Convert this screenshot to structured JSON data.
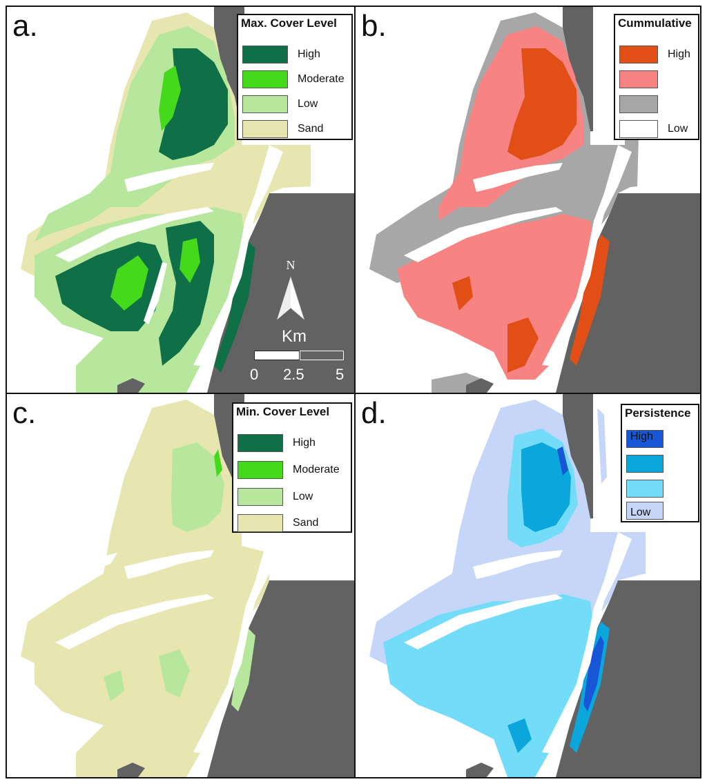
{
  "colors": {
    "land": "#626262",
    "water": "#ffffff",
    "sand": "#e7e6b1",
    "low_green": "#b7e69d",
    "moderate_green": "#45d91c",
    "high_green": "#0f7048",
    "cum_high": "#e14e16",
    "cum_mid": "#f88383",
    "cum_lowmid": "#a7a7a7",
    "cum_low": "#ffffff",
    "per_high": "#1757d6",
    "per_mid": "#0ba6dc",
    "per_lowmid": "#73dcf8",
    "per_low": "#c6d6f8"
  },
  "panels": [
    {
      "id": "a",
      "label": "a.",
      "legend": {
        "title": "Max. Cover Level",
        "items": [
          {
            "label": "High",
            "color": "#0f7048"
          },
          {
            "label": "Moderate",
            "color": "#45d91c"
          },
          {
            "label": "Low",
            "color": "#b7e69d"
          },
          {
            "label": "Sand",
            "color": "#e7e6b1"
          }
        ]
      }
    },
    {
      "id": "b",
      "label": "b.",
      "legend": {
        "title": "Cummulative",
        "items": [
          {
            "label": "High",
            "color": "#e14e16"
          },
          {
            "label": "",
            "color": "#f88383"
          },
          {
            "label": "",
            "color": "#a7a7a7"
          },
          {
            "label": "Low",
            "color": "#ffffff"
          }
        ]
      }
    },
    {
      "id": "c",
      "label": "c.",
      "legend": {
        "title": "Min. Cover Level",
        "items": [
          {
            "label": "High",
            "color": "#0f7048"
          },
          {
            "label": "Moderate",
            "color": "#45d91c"
          },
          {
            "label": "Low",
            "color": "#b7e69d"
          },
          {
            "label": "Sand",
            "color": "#e7e6b1"
          }
        ]
      }
    },
    {
      "id": "d",
      "label": "d.",
      "legend": {
        "title": "Persistence",
        "items": [
          {
            "label": "High",
            "color": "#1757d6"
          },
          {
            "label": "",
            "color": "#0ba6dc"
          },
          {
            "label": "",
            "color": "#73dcf8"
          },
          {
            "label": "Low",
            "color": "#c6d6f8"
          }
        ]
      }
    }
  ],
  "north_arrow": {
    "label": "N"
  },
  "scale_bar": {
    "unit": "Km",
    "ticks": [
      "0",
      "2.5",
      "5"
    ]
  }
}
